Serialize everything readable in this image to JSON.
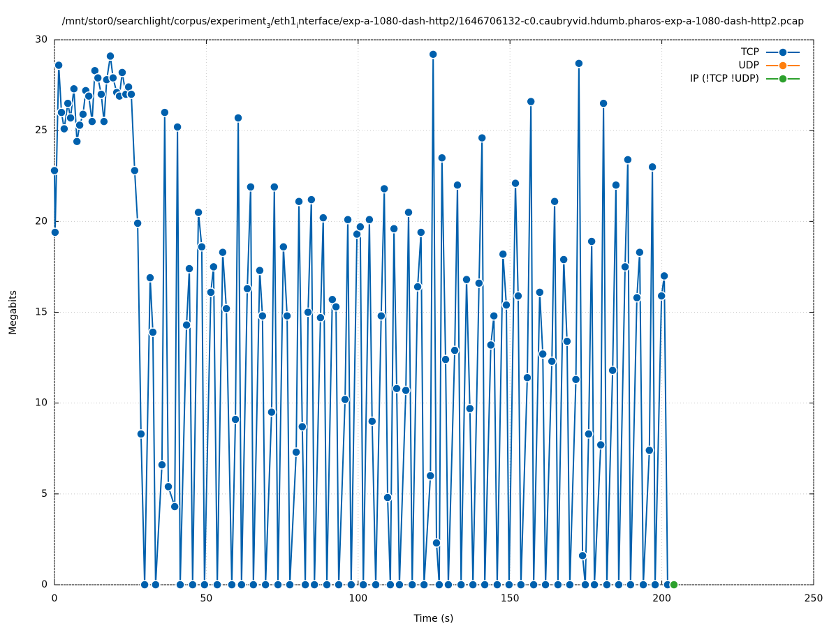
{
  "chart_data": {
    "type": "line",
    "title": "/mnt/stor0/searchlight/corpus/experiment_3/eth1_interface/exp-a-1080-dash-http2/1646706132-c0.caubryvid.hdumb.pharos-exp-a-1080-dash-http2.pcap",
    "x_label": "Time (s)",
    "y_label": "Megabits",
    "xlim": [
      0,
      250
    ],
    "xticks": [
      0,
      50,
      100,
      150,
      200,
      250
    ],
    "ylim": [
      0,
      30
    ],
    "yticks": [
      0,
      5,
      10,
      15,
      20,
      25,
      30
    ],
    "grid": true,
    "legend": "upper right",
    "series": [
      {
        "name": "TCP",
        "color": "#0060ad",
        "x": [
          0,
          0.2,
          1.4,
          2.3,
          3.2,
          4.4,
          5.3,
          6.4,
          7.4,
          8.3,
          9.4,
          10.3,
          11.3,
          12.4,
          13.3,
          14.3,
          15.4,
          16.3,
          17.2,
          18.4,
          19.3,
          20.5,
          21.4,
          22.3,
          23.5,
          24.4,
          25.3,
          26.4,
          27.4,
          28.5,
          29.7,
          31.5,
          32.4,
          33.3,
          35.4,
          36.3,
          37.5,
          39.6,
          40.5,
          41.4,
          43.5,
          44.4,
          45.5,
          47.4,
          48.5,
          49.4,
          51.5,
          52.4,
          53.6,
          55.4,
          56.6,
          58.4,
          59.6,
          60.5,
          61.6,
          63.5,
          64.6,
          65.5,
          67.6,
          68.5,
          69.5,
          71.5,
          72.4,
          73.6,
          75.4,
          76.6,
          77.5,
          79.6,
          80.5,
          81.6,
          82.6,
          83.5,
          84.6,
          85.6,
          87.6,
          88.5,
          89.7,
          91.5,
          92.7,
          93.6,
          95.7,
          96.6,
          97.7,
          99.6,
          100.7,
          101.7,
          103.7,
          104.6,
          105.8,
          107.6,
          108.6,
          109.7,
          110.6,
          111.8,
          112.7,
          113.6,
          115.7,
          116.6,
          117.8,
          119.6,
          120.7,
          121.7,
          123.8,
          124.7,
          125.8,
          126.7,
          127.6,
          128.8,
          129.7,
          131.8,
          132.7,
          133.9,
          135.7,
          136.8,
          137.8,
          139.8,
          140.8,
          141.7,
          143.7,
          144.7,
          145.8,
          147.7,
          148.8,
          149.7,
          151.8,
          152.7,
          153.6,
          155.7,
          156.9,
          157.8,
          159.8,
          160.8,
          161.7,
          163.8,
          164.7,
          165.8,
          167.7,
          168.8,
          169.7,
          171.7,
          172.7,
          173.9,
          174.8,
          175.9,
          176.9,
          177.8,
          179.9,
          180.8,
          181.9,
          183.8,
          184.9,
          185.8,
          187.9,
          188.8,
          189.7,
          191.8,
          192.7,
          193.9,
          195.9,
          196.9,
          197.8,
          199.9,
          200.8,
          201.9
        ],
        "values": [
          22.8,
          19.4,
          28.6,
          26.0,
          25.1,
          26.5,
          25.7,
          27.3,
          24.4,
          25.3,
          25.9,
          27.2,
          26.9,
          25.5,
          28.3,
          27.9,
          27.0,
          25.5,
          27.8,
          29.1,
          27.9,
          27.1,
          26.9,
          28.2,
          27.0,
          27.4,
          27.0,
          22.8,
          19.9,
          8.3,
          0,
          16.9,
          13.9,
          0,
          6.6,
          26.0,
          5.4,
          4.3,
          25.2,
          0,
          14.3,
          17.4,
          0,
          20.5,
          18.6,
          0,
          16.1,
          17.5,
          0,
          18.3,
          15.2,
          0,
          9.1,
          25.7,
          0,
          16.3,
          21.9,
          0,
          17.3,
          14.8,
          0,
          9.5,
          21.9,
          0,
          18.6,
          14.8,
          0,
          7.3,
          21.1,
          8.7,
          0,
          15.0,
          21.2,
          0,
          14.7,
          20.2,
          0,
          15.7,
          15.3,
          0,
          10.2,
          20.1,
          0,
          19.3,
          19.7,
          0,
          20.1,
          9.0,
          0,
          14.8,
          21.8,
          4.8,
          0,
          19.6,
          10.8,
          0,
          10.7,
          20.5,
          0,
          16.4,
          19.4,
          0,
          6.0,
          29.2,
          2.3,
          0,
          23.5,
          12.4,
          0,
          12.9,
          22.0,
          0,
          16.8,
          9.7,
          0,
          16.6,
          24.6,
          0,
          13.2,
          14.8,
          0,
          18.2,
          15.4,
          0,
          22.1,
          15.9,
          0,
          11.4,
          26.6,
          0,
          16.1,
          12.7,
          0,
          12.3,
          21.1,
          0,
          17.9,
          13.4,
          0,
          11.3,
          28.7,
          1.6,
          0,
          8.3,
          18.9,
          0,
          7.7,
          26.5,
          0,
          11.8,
          22.0,
          0,
          17.5,
          23.4,
          0,
          15.8,
          18.3,
          0,
          7.4,
          23.0,
          0,
          15.9,
          17.0,
          0
        ]
      },
      {
        "name": "UDP",
        "color": "#ff7f0e",
        "x": [],
        "values": []
      },
      {
        "name": "IP (!TCP  !UDP)",
        "color": "#2ca02c",
        "x": [
          204
        ],
        "values": [
          0
        ]
      }
    ]
  }
}
